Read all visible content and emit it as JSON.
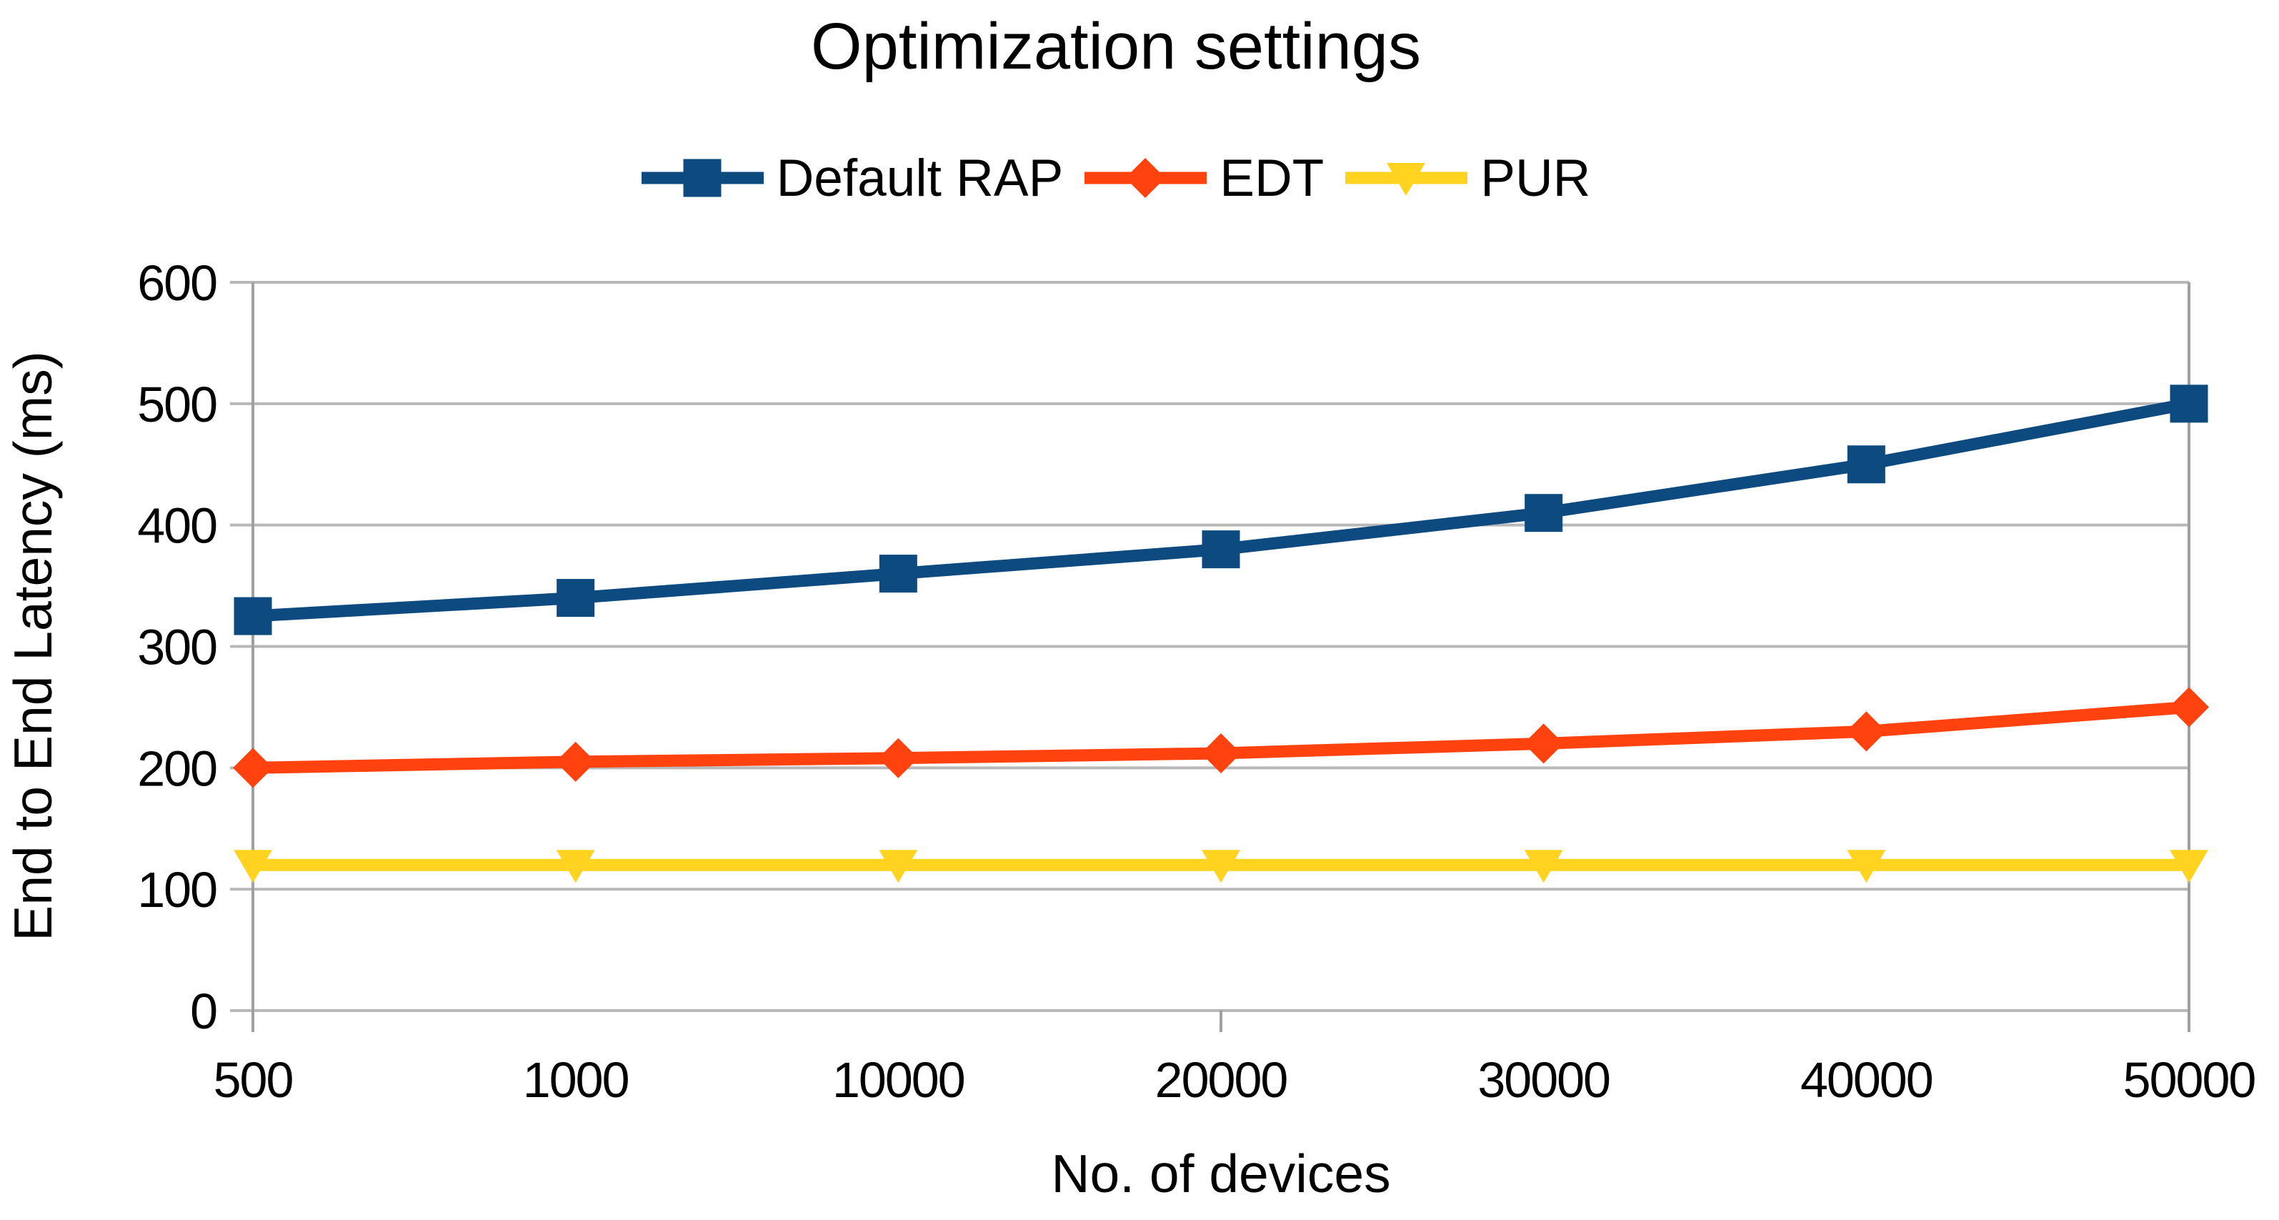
{
  "title": "Optimization settings",
  "colors": {
    "background": "#ffffff",
    "gridline": "#b8b8b8",
    "axis": "#a0a0a0",
    "text": "#000000",
    "series_blue": "#0d4a7f",
    "series_red": "#ff420e",
    "series_yellow": "#ffd320"
  },
  "chart_data": {
    "type": "line",
    "title": "Optimization settings",
    "xlabel": "No. of devices",
    "ylabel": "End to End Latency (ms)",
    "categories": [
      "500",
      "1000",
      "10000",
      "20000",
      "30000",
      "40000",
      "50000"
    ],
    "series": [
      {
        "name": "Default RAP",
        "marker": "square",
        "color": "#0d4a7f",
        "values": [
          325,
          340,
          360,
          380,
          410,
          450,
          500
        ]
      },
      {
        "name": "EDT",
        "marker": "diamond",
        "color": "#ff420e",
        "values": [
          200,
          205,
          208,
          212,
          220,
          230,
          250
        ]
      },
      {
        "name": "PUR",
        "marker": "triangle-down",
        "color": "#ffd320",
        "values": [
          120,
          120,
          120,
          120,
          120,
          120,
          120
        ]
      }
    ],
    "ylim": [
      0,
      600
    ],
    "yticks": [
      0,
      100,
      200,
      300,
      400,
      500,
      600
    ],
    "grid": "horizontal",
    "legend_position": "top"
  }
}
